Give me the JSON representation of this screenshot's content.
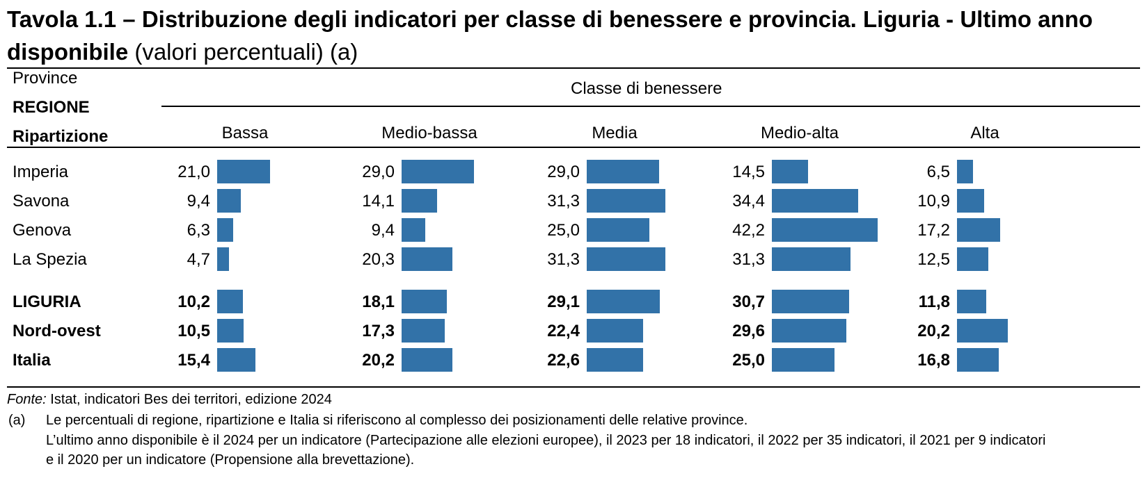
{
  "title": {
    "bold": "Tavola 1.1 – Distribuzione degli indicatori per classe di benessere e provincia. Liguria - Ultimo anno disponibile",
    "normal": " (valori percentuali) (a)"
  },
  "header": {
    "row_label_1": "Province",
    "row_label_2": "REGIONE",
    "row_label_3": "Ripartizione",
    "group_label": "Classe di benessere"
  },
  "colors": {
    "bar": "#3272a8"
  },
  "chart_data": {
    "type": "bar",
    "categories": [
      "Bassa",
      "Medio-bassa",
      "Media",
      "Medio-alta",
      "Alta"
    ],
    "rows": [
      {
        "name": "Imperia",
        "values": [
          "21,0",
          "29,0",
          "29,0",
          "14,5",
          "6,5"
        ],
        "bold": false
      },
      {
        "name": "Savona",
        "values": [
          "9,4",
          "14,1",
          "31,3",
          "34,4",
          "10,9"
        ],
        "bold": false
      },
      {
        "name": "Genova",
        "values": [
          "6,3",
          "9,4",
          "25,0",
          "42,2",
          "17,2"
        ],
        "bold": false
      },
      {
        "name": "La Spezia",
        "values": [
          "4,7",
          "20,3",
          "31,3",
          "31,3",
          "12,5"
        ],
        "bold": false
      },
      {
        "name": "LIGURIA",
        "values": [
          "10,2",
          "18,1",
          "29,1",
          "30,7",
          "11,8"
        ],
        "bold": true
      },
      {
        "name": "Nord-ovest",
        "values": [
          "10,5",
          "17,3",
          "22,4",
          "29,6",
          "20,2"
        ],
        "bold": true
      },
      {
        "name": "Italia",
        "values": [
          "15,4",
          "20,2",
          "22,6",
          "25,0",
          "16,8"
        ],
        "bold": true
      }
    ]
  },
  "notes": {
    "source_label": "Fonte:",
    "source_text": " Istat, indicatori Bes dei territori, edizione 2024",
    "a_marker": "(a)",
    "a_line1": "Le percentuali di regione, ripartizione e Italia si riferiscono al complesso dei posizionamenti delle relative province.",
    "a_line2": "L’ultimo anno disponibile è il 2024 per un indicatore (Partecipazione alle elezioni europee), il 2023 per 18 indicatori, il 2022 per 35 indicatori, il 2021 per 9 indicatori",
    "a_line3": "e il 2020 per un indicatore (Propensione alla brevettazione)."
  }
}
